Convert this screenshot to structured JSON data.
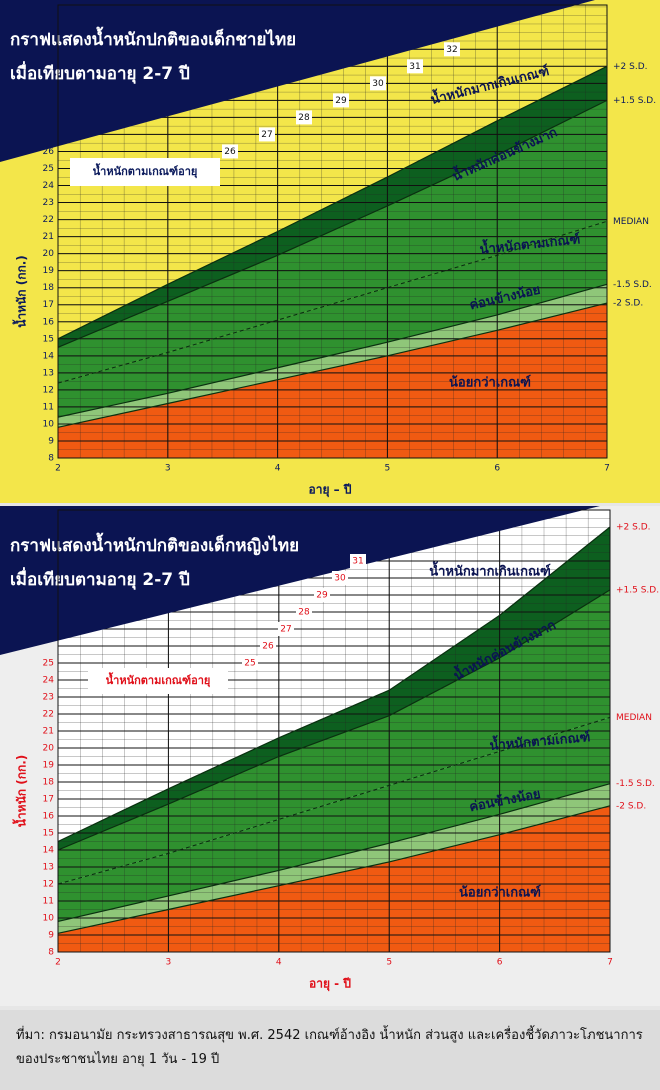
{
  "chart_data": [
    {
      "type": "area",
      "title": "กราฟแสดงน้ำหนักปกติของเด็กชายไทย",
      "subtitle": "เมื่อเทียบตามอายุ 2-7 ปี",
      "x_label": "อายุ – ปี",
      "y_label": "น้ำหนัก (กก.)",
      "x": [
        2,
        3,
        4,
        5,
        6,
        7
      ],
      "xlim": [
        2,
        7
      ],
      "xticks": [
        2,
        3,
        4,
        5,
        6,
        7
      ],
      "ylim": [
        8,
        34.6
      ],
      "yticks": [
        8,
        9,
        10,
        11,
        12,
        13,
        14,
        15,
        16,
        17,
        18,
        19,
        20,
        21,
        22,
        23,
        24,
        25,
        26
      ],
      "yticks_upper": [
        26,
        27,
        28,
        29,
        30,
        31,
        32
      ],
      "series": [
        {
          "name": "+2 S.D.",
          "color": "#0d5f1f",
          "values": [
            15.0,
            18.2,
            21.3,
            24.5,
            27.8,
            31.0
          ]
        },
        {
          "name": "+1.5 S.D.",
          "color": "#2f912f",
          "values": [
            14.5,
            17.2,
            19.9,
            22.8,
            25.8,
            29.0
          ]
        },
        {
          "name": "MEDIAN",
          "color": "#2f912f",
          "dashed": true,
          "values": [
            12.4,
            14.2,
            16.1,
            18.0,
            19.9,
            21.9
          ]
        },
        {
          "name": "-1.5 S.D.",
          "color": "#8fc679",
          "values": [
            10.4,
            11.8,
            13.3,
            14.8,
            16.4,
            18.2
          ]
        },
        {
          "name": "-2 S.D.",
          "color": "#f05a12",
          "values": [
            9.8,
            11.2,
            12.6,
            14.0,
            15.5,
            17.1
          ]
        }
      ],
      "background": "#f3e64a",
      "text_color": "#0b1a5c",
      "grid": true,
      "box_label": "น้ำหนักตามเกณฑ์อายุ",
      "annotations": [
        "น้ำหนักมากเกินเกณฑ์",
        "น้ำหนักค่อนข้างมาก",
        "น้ำหนักตามเกณฑ์",
        "ค่อนข้างน้อย",
        "น้อยกว่าเกณฑ์"
      ]
    },
    {
      "type": "area",
      "title": "กราฟแสดงน้ำหนักปกติของเด็กหญิงไทย",
      "subtitle": "เมื่อเทียบตามอายุ 2-7 ปี",
      "x_label": "อายุ - ปี",
      "y_label": "น้ำหนัก (กก.)",
      "x": [
        2,
        3,
        4,
        5,
        6,
        7
      ],
      "xlim": [
        2,
        7
      ],
      "xticks": [
        2,
        3,
        4,
        5,
        6,
        7
      ],
      "ylim": [
        8,
        34
      ],
      "yticks": [
        8,
        9,
        10,
        11,
        12,
        13,
        14,
        15,
        16,
        17,
        18,
        19,
        20,
        21,
        22,
        23,
        24,
        25
      ],
      "yticks_upper": [
        25,
        26,
        27,
        28,
        29,
        30,
        31
      ],
      "series": [
        {
          "name": "+2 S.D.",
          "color": "#0d5f1f",
          "values": [
            14.5,
            17.6,
            20.6,
            23.4,
            27.8,
            33.0
          ]
        },
        {
          "name": "+1.5 S.D.",
          "color": "#2f912f",
          "values": [
            14.0,
            16.7,
            19.5,
            21.9,
            25.3,
            29.3
          ]
        },
        {
          "name": "MEDIAN",
          "color": "#2f912f",
          "dashed": true,
          "values": [
            12.0,
            13.8,
            15.8,
            17.8,
            19.8,
            21.8
          ]
        },
        {
          "name": "-1.5 S.D.",
          "color": "#8fc679",
          "values": [
            9.8,
            11.3,
            12.8,
            14.4,
            16.1,
            17.9
          ]
        },
        {
          "name": "-2 S.D.",
          "color": "#f05a12",
          "values": [
            9.1,
            10.5,
            11.9,
            13.3,
            14.9,
            16.6
          ]
        }
      ],
      "background": "#ffffff",
      "text_color": "#e0101a",
      "grid": true,
      "box_label": "น้ำหนักตามเกณฑ์อายุ",
      "annotations": [
        "น้ำหนักมากเกินเกณฑ์",
        "น้ำหนักค่อนข้างมาก",
        "น้ำหนักตามเกณฑ์",
        "ค่อนข้างน้อย",
        "น้อยกว่าเกณฑ์"
      ]
    }
  ],
  "source": "ที่มา: กรมอนามัย กระทรวงสาธารณสุข พ.ศ. 2542 เกณฑ์อ้างอิง น้ำหนัก ส่วนสูง และเครื่องชี้วัดภาวะโภชนาการของประชาชนไทย อายุ 1 วัน - 19 ปี"
}
